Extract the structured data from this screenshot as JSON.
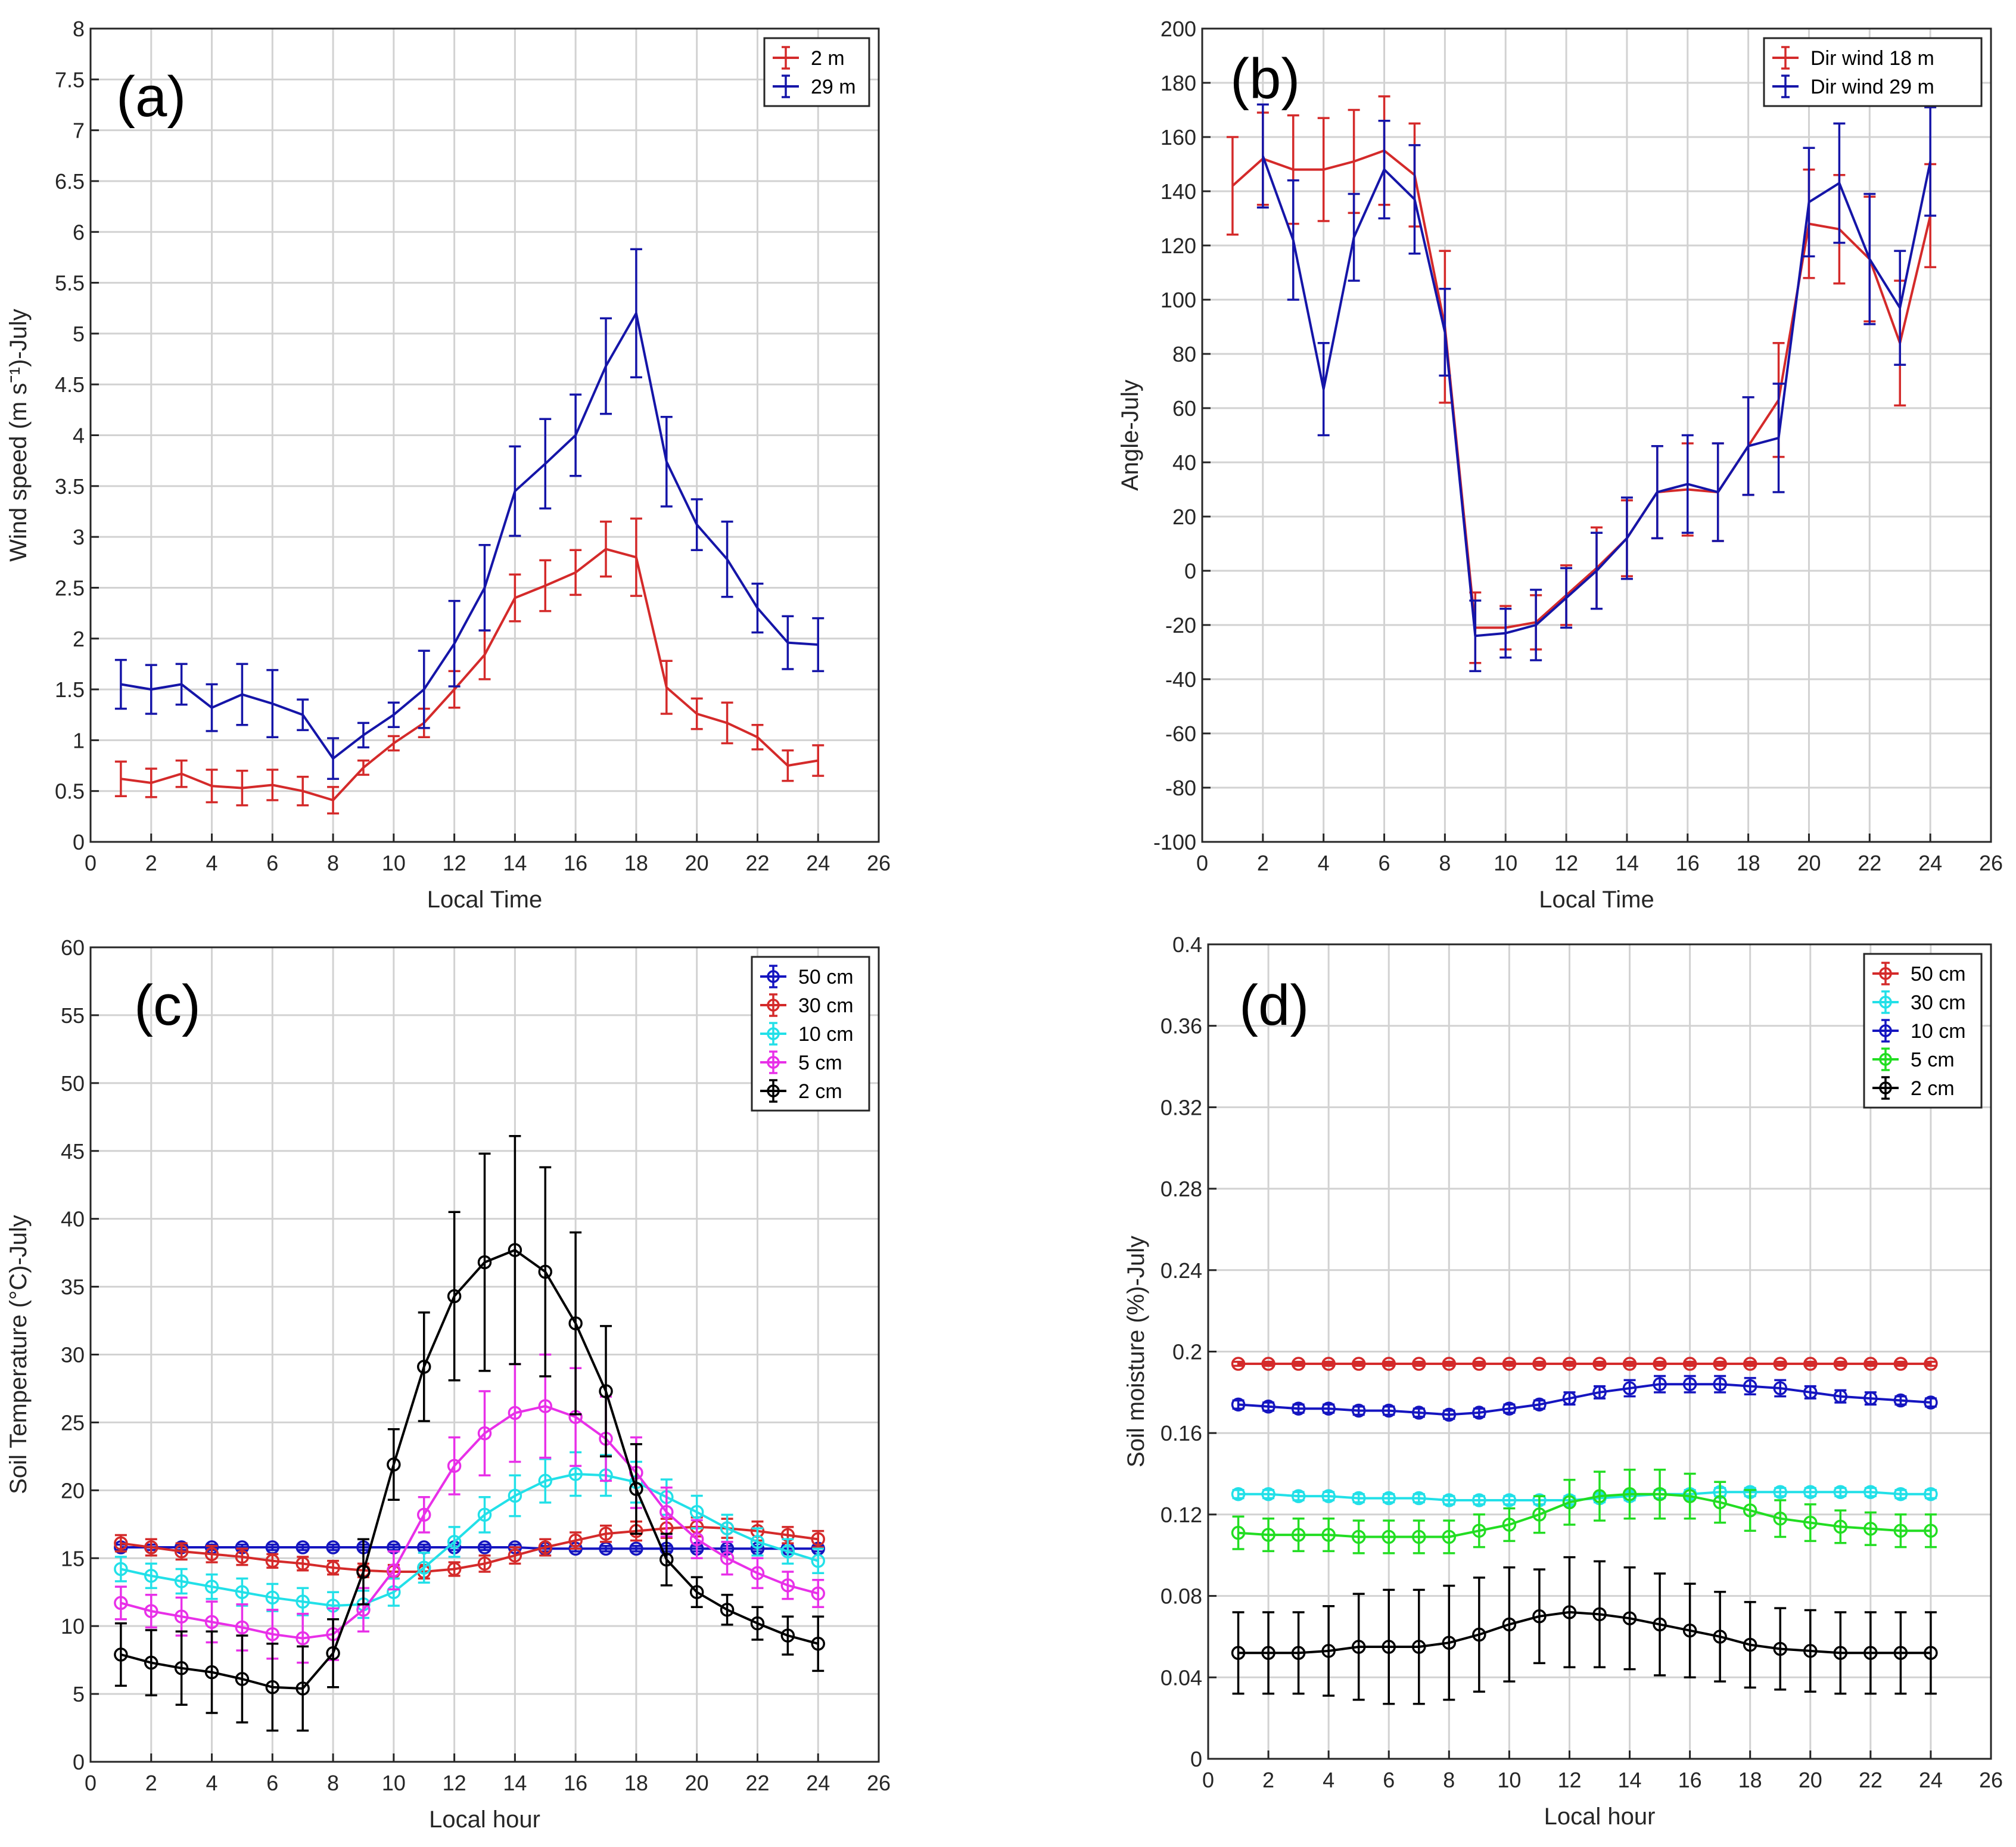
{
  "chart_data": [
    {
      "id": "a",
      "type": "line",
      "panel_label": "(a)",
      "xlabel": "Local Time",
      "ylabel": "Wind speed (m sˉ¹)-July",
      "xlim": [
        0,
        26
      ],
      "ylim": [
        0,
        8
      ],
      "xticks": [
        0,
        2,
        4,
        6,
        8,
        10,
        12,
        14,
        16,
        18,
        20,
        22,
        24,
        26
      ],
      "yticks": [
        0,
        0.5,
        1,
        1.5,
        2,
        2.5,
        3,
        3.5,
        4,
        4.5,
        5,
        5.5,
        6,
        6.5,
        7,
        7.5,
        8
      ],
      "grid": true,
      "legend_position": "top-right",
      "x": [
        1,
        2,
        3,
        4,
        5,
        6,
        7,
        8,
        9,
        10,
        11,
        12,
        13,
        14,
        15,
        16,
        17,
        18,
        19,
        20,
        21,
        22,
        23,
        24
      ],
      "series": [
        {
          "name": "2 m",
          "color": "#d42a2a",
          "marker": "none",
          "values": [
            0.62,
            0.58,
            0.67,
            0.55,
            0.53,
            0.56,
            0.5,
            0.41,
            0.73,
            0.97,
            1.17,
            1.5,
            1.84,
            2.4,
            2.52,
            2.65,
            2.88,
            2.8,
            1.52,
            1.26,
            1.17,
            1.03,
            0.75,
            0.8
          ],
          "errors": [
            0.17,
            0.14,
            0.13,
            0.16,
            0.17,
            0.15,
            0.14,
            0.13,
            0.07,
            0.07,
            0.14,
            0.18,
            0.24,
            0.23,
            0.25,
            0.22,
            0.27,
            0.38,
            0.26,
            0.15,
            0.2,
            0.12,
            0.15,
            0.15
          ]
        },
        {
          "name": "29 m",
          "color": "#1515a8",
          "marker": "none",
          "values": [
            1.55,
            1.5,
            1.55,
            1.32,
            1.45,
            1.36,
            1.25,
            0.82,
            1.05,
            1.25,
            1.5,
            1.95,
            2.5,
            3.45,
            3.72,
            4.0,
            4.68,
            5.2,
            3.74,
            3.12,
            2.78,
            2.3,
            1.96,
            1.94
          ],
          "errors": [
            0.24,
            0.24,
            0.2,
            0.23,
            0.3,
            0.33,
            0.15,
            0.2,
            0.12,
            0.12,
            0.38,
            0.42,
            0.42,
            0.44,
            0.44,
            0.4,
            0.47,
            0.63,
            0.44,
            0.25,
            0.37,
            0.24,
            0.26,
            0.26
          ]
        }
      ]
    },
    {
      "id": "b",
      "type": "line",
      "panel_label": "(b)",
      "xlabel": "Local Time",
      "ylabel": "Angle-July",
      "xlim": [
        0,
        26
      ],
      "ylim": [
        -100,
        200
      ],
      "xticks": [
        0,
        2,
        4,
        6,
        8,
        10,
        12,
        14,
        16,
        18,
        20,
        22,
        24,
        26
      ],
      "yticks": [
        -100,
        -80,
        -60,
        -40,
        -20,
        0,
        20,
        40,
        60,
        80,
        100,
        120,
        140,
        160,
        180,
        200
      ],
      "grid": true,
      "legend_position": "top-right",
      "x": [
        1,
        2,
        3,
        4,
        5,
        6,
        7,
        8,
        9,
        10,
        11,
        12,
        13,
        14,
        15,
        16,
        17,
        18,
        19,
        20,
        21,
        22,
        23,
        24
      ],
      "series": [
        {
          "name": "Dir wind 18 m",
          "color": "#d42a2a",
          "marker": "none",
          "values": [
            142,
            152,
            148,
            148,
            151,
            155,
            146,
            90,
            -21,
            -21,
            -19,
            -9,
            1,
            12,
            29,
            30,
            29,
            46,
            63,
            128,
            126,
            115,
            84,
            131
          ],
          "errors": [
            18,
            17,
            20,
            19,
            19,
            20,
            19,
            28,
            13,
            8,
            10,
            11,
            15,
            14,
            17,
            17,
            18,
            18,
            21,
            20,
            20,
            23,
            23,
            19
          ]
        },
        {
          "name": "Dir wind 29 m",
          "color": "#1515a8",
          "marker": "none",
          "values": [
            null,
            153,
            122,
            67,
            123,
            148,
            137,
            88,
            -24,
            -23,
            -20,
            -10,
            0,
            12,
            29,
            32,
            29,
            46,
            49,
            136,
            143,
            115,
            97,
            151
          ],
          "errors": [
            null,
            19,
            22,
            17,
            16,
            18,
            20,
            16,
            13,
            9,
            13,
            11,
            14,
            15,
            17,
            18,
            18,
            18,
            20,
            20,
            22,
            24,
            21,
            20
          ]
        }
      ]
    },
    {
      "id": "c",
      "type": "line",
      "panel_label": "(c)",
      "xlabel": "Local hour",
      "ylabel": "Soil Temperature (°C)-July",
      "xlim": [
        0,
        26
      ],
      "ylim": [
        0,
        60
      ],
      "xticks": [
        0,
        2,
        4,
        6,
        8,
        10,
        12,
        14,
        16,
        18,
        20,
        22,
        24,
        26
      ],
      "yticks": [
        0,
        5,
        10,
        15,
        20,
        25,
        30,
        35,
        40,
        45,
        50,
        55,
        60
      ],
      "grid": true,
      "legend_position": "top-right",
      "x": [
        1,
        2,
        3,
        4,
        5,
        6,
        7,
        8,
        9,
        10,
        11,
        12,
        13,
        14,
        15,
        16,
        17,
        18,
        19,
        20,
        21,
        22,
        23,
        24
      ],
      "series": [
        {
          "name": "50 cm",
          "color": "#1515c0",
          "marker": "circle",
          "values": [
            15.8,
            15.8,
            15.8,
            15.8,
            15.8,
            15.8,
            15.8,
            15.8,
            15.8,
            15.8,
            15.8,
            15.8,
            15.8,
            15.8,
            15.7,
            15.7,
            15.7,
            15.7,
            15.7,
            15.7,
            15.7,
            15.7,
            15.7,
            15.7
          ],
          "errors": [
            0.2,
            0.2,
            0.2,
            0.2,
            0.2,
            0.2,
            0.2,
            0.2,
            0.2,
            0.2,
            0.2,
            0.2,
            0.2,
            0.2,
            0.2,
            0.2,
            0.2,
            0.2,
            0.2,
            0.2,
            0.2,
            0.2,
            0.2,
            0.2
          ]
        },
        {
          "name": "30 cm",
          "color": "#d42a2a",
          "marker": "circle",
          "values": [
            16.1,
            15.8,
            15.5,
            15.3,
            15.1,
            14.8,
            14.6,
            14.3,
            14.1,
            14.0,
            14.0,
            14.2,
            14.6,
            15.2,
            15.8,
            16.3,
            16.8,
            17.0,
            17.2,
            17.3,
            17.2,
            17.0,
            16.7,
            16.4
          ],
          "errors": [
            0.6,
            0.6,
            0.6,
            0.6,
            0.6,
            0.5,
            0.5,
            0.5,
            0.5,
            0.5,
            0.5,
            0.5,
            0.6,
            0.6,
            0.6,
            0.6,
            0.6,
            0.7,
            0.7,
            0.7,
            0.7,
            0.7,
            0.6,
            0.6
          ]
        },
        {
          "name": "10 cm",
          "color": "#22e0e8",
          "marker": "circle",
          "values": [
            14.2,
            13.7,
            13.3,
            12.9,
            12.5,
            12.1,
            11.8,
            11.5,
            11.6,
            12.5,
            14.3,
            16.2,
            18.2,
            19.6,
            20.7,
            21.2,
            21.1,
            20.6,
            19.5,
            18.4,
            17.2,
            16.2,
            15.5,
            14.8
          ],
          "errors": [
            0.9,
            0.9,
            0.9,
            0.9,
            1.0,
            1.0,
            1.0,
            1.0,
            1.0,
            1.0,
            1.1,
            1.1,
            1.3,
            1.5,
            1.6,
            1.6,
            1.5,
            1.5,
            1.3,
            1.2,
            1.0,
            1.0,
            0.9,
            0.9
          ]
        },
        {
          "name": "5 cm",
          "color": "#e830e8",
          "marker": "circle",
          "values": [
            11.7,
            11.1,
            10.7,
            10.3,
            9.9,
            9.4,
            9.1,
            9.4,
            11.2,
            14.1,
            18.2,
            21.8,
            24.2,
            25.7,
            26.2,
            25.4,
            23.8,
            21.3,
            18.4,
            16.4,
            15.0,
            13.9,
            13.0,
            12.4
          ],
          "errors": [
            1.2,
            1.2,
            1.4,
            1.5,
            1.7,
            1.8,
            1.8,
            1.9,
            1.6,
            1.4,
            1.3,
            2.1,
            3.1,
            3.6,
            3.8,
            3.6,
            3.1,
            2.6,
            1.8,
            1.4,
            1.2,
            1.1,
            1.0,
            1.0
          ]
        },
        {
          "name": "2 cm",
          "color": "#000000",
          "marker": "circle",
          "values": [
            7.9,
            7.3,
            6.9,
            6.6,
            6.1,
            5.5,
            5.4,
            8.0,
            14.0,
            21.9,
            29.1,
            34.3,
            36.8,
            37.7,
            36.1,
            32.3,
            27.3,
            20.1,
            14.9,
            12.5,
            11.2,
            10.2,
            9.3,
            8.7
          ],
          "errors": [
            2.3,
            2.4,
            2.7,
            3.0,
            3.2,
            3.2,
            3.1,
            2.5,
            2.4,
            2.6,
            4.0,
            6.2,
            8.0,
            8.4,
            7.7,
            6.7,
            4.8,
            3.3,
            1.9,
            1.1,
            1.1,
            1.2,
            1.4,
            2.0
          ]
        }
      ]
    },
    {
      "id": "d",
      "type": "line",
      "panel_label": "(d)",
      "xlabel": "Local hour",
      "ylabel": "Soil moisture (%)-July",
      "xlim": [
        0,
        26
      ],
      "ylim": [
        0,
        0.4
      ],
      "xticks": [
        0,
        2,
        4,
        6,
        8,
        10,
        12,
        14,
        16,
        18,
        20,
        22,
        24,
        26
      ],
      "yticks": [
        0,
        0.04,
        0.08,
        0.12,
        0.16,
        0.2,
        0.24,
        0.28,
        0.32,
        0.36,
        0.4
      ],
      "grid": true,
      "legend_position": "top-right",
      "x": [
        1,
        2,
        3,
        4,
        5,
        6,
        7,
        8,
        9,
        10,
        11,
        12,
        13,
        14,
        15,
        16,
        17,
        18,
        19,
        20,
        21,
        22,
        23,
        24
      ],
      "series": [
        {
          "name": "50 cm",
          "color": "#d42a2a",
          "marker": "circle",
          "values": [
            0.194,
            0.194,
            0.194,
            0.194,
            0.194,
            0.194,
            0.194,
            0.194,
            0.194,
            0.194,
            0.194,
            0.194,
            0.194,
            0.194,
            0.194,
            0.194,
            0.194,
            0.194,
            0.194,
            0.194,
            0.194,
            0.194,
            0.194,
            0.194
          ],
          "errors": [
            0.001,
            0.001,
            0.001,
            0.001,
            0.001,
            0.001,
            0.001,
            0.001,
            0.001,
            0.001,
            0.001,
            0.001,
            0.001,
            0.001,
            0.001,
            0.001,
            0.001,
            0.001,
            0.001,
            0.001,
            0.001,
            0.001,
            0.001,
            0.001
          ]
        },
        {
          "name": "30 cm",
          "color": "#22e0e8",
          "marker": "circle",
          "values": [
            0.13,
            0.13,
            0.129,
            0.129,
            0.128,
            0.128,
            0.128,
            0.127,
            0.127,
            0.127,
            0.127,
            0.127,
            0.128,
            0.129,
            0.13,
            0.13,
            0.131,
            0.131,
            0.131,
            0.131,
            0.131,
            0.131,
            0.13,
            0.13
          ],
          "errors": [
            0.002,
            0.002,
            0.002,
            0.002,
            0.002,
            0.002,
            0.002,
            0.002,
            0.002,
            0.002,
            0.002,
            0.002,
            0.002,
            0.002,
            0.002,
            0.002,
            0.002,
            0.002,
            0.002,
            0.002,
            0.002,
            0.002,
            0.002,
            0.002
          ]
        },
        {
          "name": "10 cm",
          "color": "#1515c0",
          "marker": "circle",
          "values": [
            0.174,
            0.173,
            0.172,
            0.172,
            0.171,
            0.171,
            0.17,
            0.169,
            0.17,
            0.172,
            0.174,
            0.177,
            0.18,
            0.182,
            0.184,
            0.184,
            0.184,
            0.183,
            0.182,
            0.18,
            0.178,
            0.177,
            0.176,
            0.175
          ],
          "errors": [
            0.002,
            0.002,
            0.002,
            0.002,
            0.002,
            0.002,
            0.002,
            0.002,
            0.002,
            0.002,
            0.002,
            0.003,
            0.003,
            0.004,
            0.004,
            0.004,
            0.004,
            0.004,
            0.004,
            0.003,
            0.003,
            0.003,
            0.002,
            0.002
          ]
        },
        {
          "name": "5 cm",
          "color": "#22dd22",
          "marker": "circle",
          "values": [
            0.111,
            0.11,
            0.11,
            0.11,
            0.109,
            0.109,
            0.109,
            0.109,
            0.112,
            0.115,
            0.12,
            0.126,
            0.129,
            0.13,
            0.13,
            0.129,
            0.126,
            0.122,
            0.118,
            0.116,
            0.114,
            0.113,
            0.112,
            0.112
          ],
          "errors": [
            0.008,
            0.008,
            0.008,
            0.008,
            0.008,
            0.008,
            0.008,
            0.008,
            0.008,
            0.008,
            0.009,
            0.011,
            0.012,
            0.012,
            0.012,
            0.011,
            0.01,
            0.01,
            0.009,
            0.009,
            0.008,
            0.008,
            0.008,
            0.008
          ]
        },
        {
          "name": "2 cm",
          "color": "#000000",
          "marker": "circle",
          "values": [
            0.052,
            0.052,
            0.052,
            0.053,
            0.055,
            0.055,
            0.055,
            0.057,
            0.061,
            0.066,
            0.07,
            0.072,
            0.071,
            0.069,
            0.066,
            0.063,
            0.06,
            0.056,
            0.054,
            0.053,
            0.052,
            0.052,
            0.052,
            0.052
          ],
          "errors": [
            0.02,
            0.02,
            0.02,
            0.022,
            0.026,
            0.028,
            0.028,
            0.028,
            0.028,
            0.028,
            0.023,
            0.027,
            0.026,
            0.025,
            0.025,
            0.023,
            0.022,
            0.021,
            0.02,
            0.02,
            0.02,
            0.02,
            0.02,
            0.02
          ]
        }
      ]
    }
  ]
}
